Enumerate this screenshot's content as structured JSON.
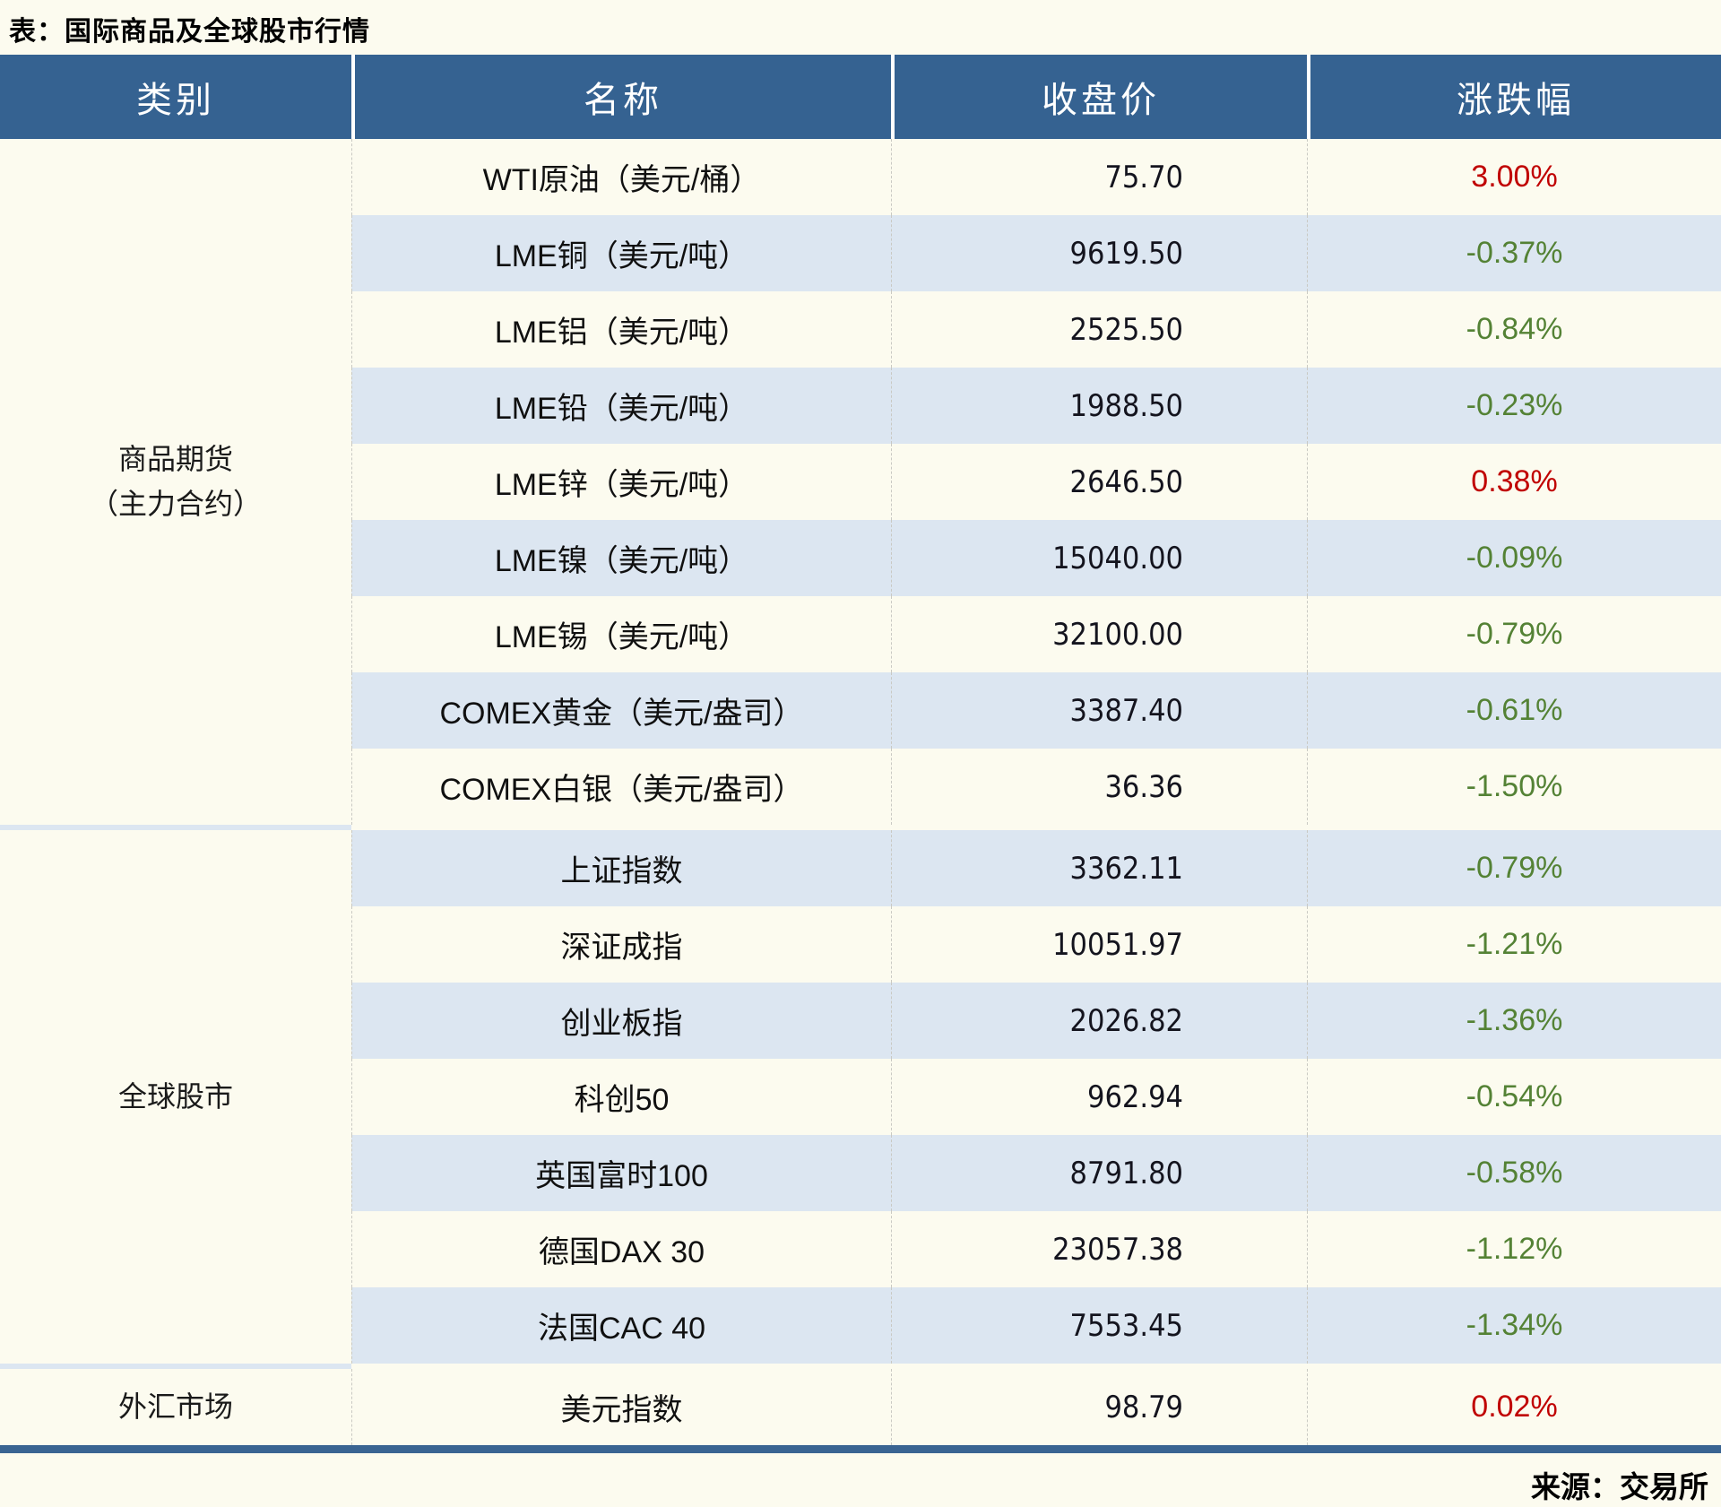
{
  "title": "表：国际商品及全球股市行情",
  "source": "来源：交易所",
  "colors": {
    "header_bg": "#356291",
    "row_alt_bg": "#DCE6F1",
    "row_base_bg": "#FCFBEF",
    "up_red": "#C00000",
    "down_green": "#548235",
    "bottom_border": "#3A6492"
  },
  "table": {
    "headers": [
      "类别",
      "名称",
      "收盘价",
      "涨跌幅"
    ],
    "groups": [
      {
        "category_lines": [
          "商品期货",
          "（主力合约）"
        ],
        "rows": [
          {
            "name": "WTI原油（美元/桶）",
            "close": "75.70",
            "change": "3.00%",
            "direction": "up"
          },
          {
            "name": "LME铜（美元/吨）",
            "close": "9619.50",
            "change": "-0.37%",
            "direction": "down"
          },
          {
            "name": "LME铝（美元/吨）",
            "close": "2525.50",
            "change": "-0.84%",
            "direction": "down"
          },
          {
            "name": "LME铅（美元/吨）",
            "close": "1988.50",
            "change": "-0.23%",
            "direction": "down"
          },
          {
            "name": "LME锌（美元/吨）",
            "close": "2646.50",
            "change": "0.38%",
            "direction": "up"
          },
          {
            "name": "LME镍（美元/吨）",
            "close": "15040.00",
            "change": "-0.09%",
            "direction": "down"
          },
          {
            "name": "LME锡（美元/吨）",
            "close": "32100.00",
            "change": "-0.79%",
            "direction": "down"
          },
          {
            "name": "COMEX黄金（美元/盎司）",
            "close": "3387.40",
            "change": "-0.61%",
            "direction": "down"
          },
          {
            "name": "COMEX白银（美元/盎司）",
            "close": "36.36",
            "change": "-1.50%",
            "direction": "down"
          }
        ]
      },
      {
        "category_lines": [
          "全球股市"
        ],
        "rows": [
          {
            "name": "上证指数",
            "close": "3362.11",
            "change": "-0.79%",
            "direction": "down"
          },
          {
            "name": "深证成指",
            "close": "10051.97",
            "change": "-1.21%",
            "direction": "down"
          },
          {
            "name": "创业板指",
            "close": "2026.82",
            "change": "-1.36%",
            "direction": "down"
          },
          {
            "name": "科创50",
            "close": "962.94",
            "change": "-0.54%",
            "direction": "down"
          },
          {
            "name": "英国富时100",
            "close": "8791.80",
            "change": "-0.58%",
            "direction": "down"
          },
          {
            "name": "德国DAX 30",
            "close": "23057.38",
            "change": "-1.12%",
            "direction": "down"
          },
          {
            "name": "法国CAC 40",
            "close": "7553.45",
            "change": "-1.34%",
            "direction": "down"
          }
        ]
      },
      {
        "category_lines": [
          "外汇市场"
        ],
        "rows": [
          {
            "name": "美元指数",
            "close": "98.79",
            "change": "0.02%",
            "direction": "up"
          }
        ]
      }
    ]
  },
  "chart_data": {
    "type": "table",
    "title": "表：国际商品及全球股市行情",
    "columns": [
      "类别",
      "名称",
      "收盘价",
      "涨跌幅"
    ],
    "rows": [
      [
        "商品期货（主力合约）",
        "WTI原油（美元/桶）",
        75.7,
        "3.00%"
      ],
      [
        "商品期货（主力合约）",
        "LME铜（美元/吨）",
        9619.5,
        "-0.37%"
      ],
      [
        "商品期货（主力合约）",
        "LME铝（美元/吨）",
        2525.5,
        "-0.84%"
      ],
      [
        "商品期货（主力合约）",
        "LME铅（美元/吨）",
        1988.5,
        "-0.23%"
      ],
      [
        "商品期货（主力合约）",
        "LME锌（美元/吨）",
        2646.5,
        "0.38%"
      ],
      [
        "商品期货（主力合约）",
        "LME镍（美元/吨）",
        15040.0,
        "-0.09%"
      ],
      [
        "商品期货（主力合约）",
        "LME锡（美元/吨）",
        32100.0,
        "-0.79%"
      ],
      [
        "商品期货（主力合约）",
        "COMEX黄金（美元/盎司）",
        3387.4,
        "-0.61%"
      ],
      [
        "商品期货（主力合约）",
        "COMEX白银（美元/盎司）",
        36.36,
        "-1.50%"
      ],
      [
        "全球股市",
        "上证指数",
        3362.11,
        "-0.79%"
      ],
      [
        "全球股市",
        "深证成指",
        10051.97,
        "-1.21%"
      ],
      [
        "全球股市",
        "创业板指",
        2026.82,
        "-1.36%"
      ],
      [
        "全球股市",
        "科创50",
        962.94,
        "-0.54%"
      ],
      [
        "全球股市",
        "英国富时100",
        8791.8,
        "-0.58%"
      ],
      [
        "全球股市",
        "德国DAX 30",
        23057.38,
        "-1.12%"
      ],
      [
        "全球股市",
        "法国CAC 40",
        7553.45,
        "-1.34%"
      ],
      [
        "外汇市场",
        "美元指数",
        98.79,
        "0.02%"
      ]
    ],
    "notes": "红色=上涨(up), 绿色=下跌(down); 来源：交易所"
  }
}
